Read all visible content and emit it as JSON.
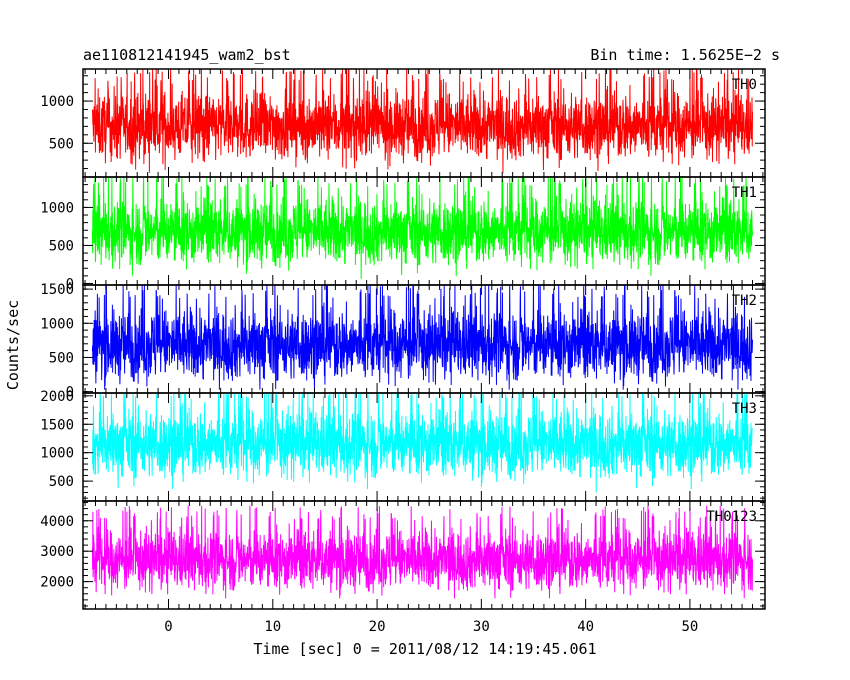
{
  "header": {
    "left_title": "ae110812141945_wam2_bst",
    "right_title": "Bin time: 1.5625E−2 s"
  },
  "axes": {
    "xlabel": "Time [sec] 0 = 2011/08/12 14:19:45.061",
    "ylabel": "Counts/sec"
  },
  "chart_data": {
    "type": "line",
    "x_range": [
      -8.2,
      57.2
    ],
    "x_ticks": [
      0,
      10,
      20,
      30,
      40,
      50
    ],
    "x_tick_labels": [
      "0",
      "10",
      "20",
      "30",
      "40",
      "50"
    ],
    "data_x_range": [
      -7.3,
      56.0
    ],
    "bin_time": 0.015625,
    "panels": [
      {
        "name": "TH0",
        "color": "#ff0000",
        "ylim": [
          100,
          1380
        ],
        "ticks": [
          500,
          1000
        ],
        "tick_labels": [
          "500",
          "1000"
        ],
        "mean": 700,
        "spread": 200,
        "min": 150,
        "max": 1380
      },
      {
        "name": "TH1",
        "color": "#00ff00",
        "ylim": [
          -20,
          1400
        ],
        "ticks": [
          0,
          500,
          1000
        ],
        "tick_labels": [
          "0",
          "500",
          "1000"
        ],
        "mean": 680,
        "spread": 220,
        "min": 60,
        "max": 1400
      },
      {
        "name": "TH2",
        "color": "#0000ff",
        "ylim": [
          -20,
          1560
        ],
        "ticks": [
          0,
          500,
          1000,
          1500
        ],
        "tick_labels": [
          "0",
          "500",
          "1000",
          "1500"
        ],
        "mean": 680,
        "spread": 260,
        "min": 30,
        "max": 1560
      },
      {
        "name": "TH3",
        "color": "#00ffff",
        "ylim": [
          150,
          2050
        ],
        "ticks": [
          500,
          1000,
          1500,
          2000
        ],
        "tick_labels": [
          "500",
          "1000",
          "1500",
          "2000"
        ],
        "mean": 1150,
        "spread": 300,
        "min": 300,
        "max": 2050
      },
      {
        "name": "TH0123",
        "color": "#ff00ff",
        "ylim": [
          1100,
          4650
        ],
        "ticks": [
          2000,
          3000,
          4000
        ],
        "tick_labels": [
          "2000",
          "3000",
          "4000"
        ],
        "mean": 2700,
        "spread": 500,
        "min": 1450,
        "max": 4650
      }
    ]
  }
}
